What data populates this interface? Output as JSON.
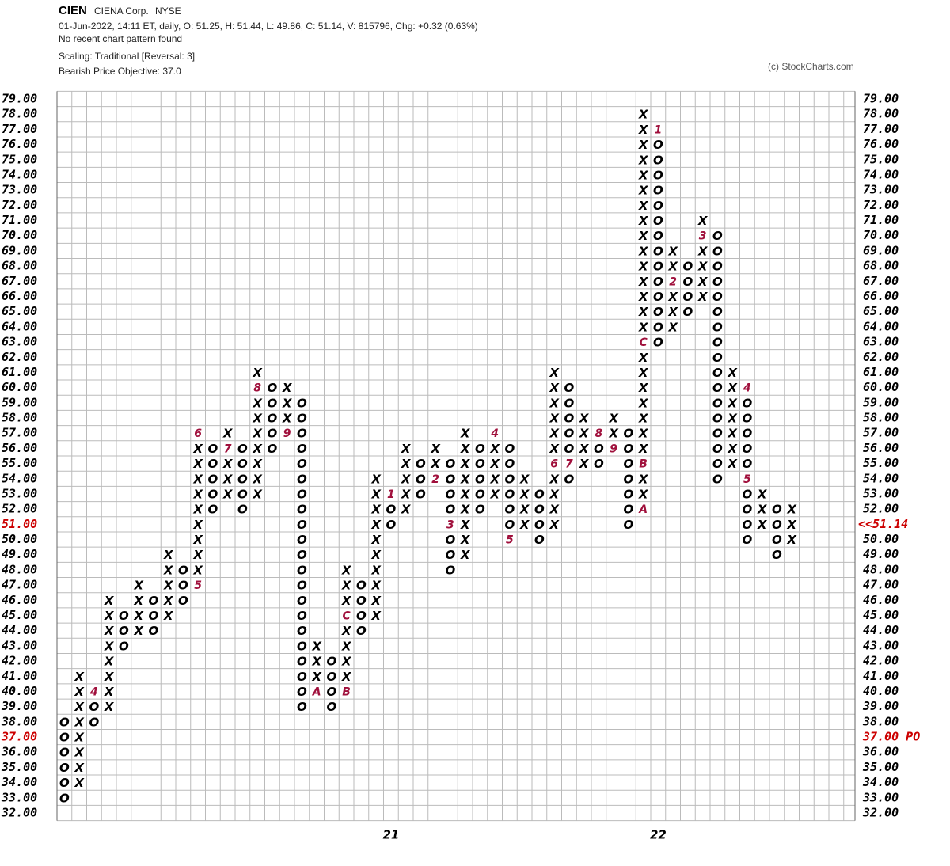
{
  "chart_data": {
    "type": "point-and-figure",
    "symbol": "CIEN",
    "name": "CIENA Corp.",
    "exchange": "NYSE",
    "quote": "01-Jun-2022, 14:11 ET, daily, O: 51.25, H: 51.44, L: 49.86, C: 51.14, V: 815796, Chg: +0.32 (0.63%)",
    "pattern": "No recent chart pattern found",
    "scaling": "Scaling: Traditional [Reversal: 3]",
    "objective_text": "Bearish Price Objective: 37.0",
    "credit": "(c) StockCharts.com",
    "box_size": 1,
    "highlight_color": "#cc0000",
    "ylim": [
      32,
      79
    ],
    "yticks": [
      {
        "value": 32,
        "label": "32.00"
      },
      {
        "value": 33,
        "label": "33.00"
      },
      {
        "value": 34,
        "label": "34.00"
      },
      {
        "value": 35,
        "label": "35.00"
      },
      {
        "value": 36,
        "label": "36.00"
      },
      {
        "value": 37,
        "label": "37.00"
      },
      {
        "value": 38,
        "label": "38.00"
      },
      {
        "value": 39,
        "label": "39.00"
      },
      {
        "value": 40,
        "label": "40.00"
      },
      {
        "value": 41,
        "label": "41.00"
      },
      {
        "value": 42,
        "label": "42.00"
      },
      {
        "value": 43,
        "label": "43.00"
      },
      {
        "value": 44,
        "label": "44.00"
      },
      {
        "value": 45,
        "label": "45.00"
      },
      {
        "value": 46,
        "label": "46.00"
      },
      {
        "value": 47,
        "label": "47.00"
      },
      {
        "value": 48,
        "label": "48.00"
      },
      {
        "value": 49,
        "label": "49.00"
      },
      {
        "value": 50,
        "label": "50.00"
      },
      {
        "value": 51,
        "label": "51.00"
      },
      {
        "value": 52,
        "label": "52.00"
      },
      {
        "value": 53,
        "label": "53.00"
      },
      {
        "value": 54,
        "label": "54.00"
      },
      {
        "value": 55,
        "label": "55.00"
      },
      {
        "value": 56,
        "label": "56.00"
      },
      {
        "value": 57,
        "label": "57.00"
      },
      {
        "value": 58,
        "label": "58.00"
      },
      {
        "value": 59,
        "label": "59.00"
      },
      {
        "value": 60,
        "label": "60.00"
      },
      {
        "value": 61,
        "label": "61.00"
      },
      {
        "value": 62,
        "label": "62.00"
      },
      {
        "value": 63,
        "label": "63.00"
      },
      {
        "value": 64,
        "label": "64.00"
      },
      {
        "value": 65,
        "label": "65.00"
      },
      {
        "value": 66,
        "label": "66.00"
      },
      {
        "value": 67,
        "label": "67.00"
      },
      {
        "value": 68,
        "label": "68.00"
      },
      {
        "value": 69,
        "label": "69.00"
      },
      {
        "value": 70,
        "label": "70.00"
      },
      {
        "value": 71,
        "label": "71.00"
      },
      {
        "value": 72,
        "label": "72.00"
      },
      {
        "value": 73,
        "label": "73.00"
      },
      {
        "value": 74,
        "label": "74.00"
      },
      {
        "value": 75,
        "label": "75.00"
      },
      {
        "value": 76,
        "label": "76.00"
      },
      {
        "value": 77,
        "label": "77.00"
      },
      {
        "value": 78,
        "label": "78.00"
      },
      {
        "value": 79,
        "label": "79.00"
      }
    ],
    "last_price": {
      "value": 51.14,
      "label": "<<51.14"
    },
    "price_objective": {
      "value": 37,
      "label": "37.00 PO"
    },
    "columns": [
      {
        "type": "O",
        "high": 38,
        "low": 33
      },
      {
        "type": "X",
        "high": 41,
        "low": 34
      },
      {
        "type": "O",
        "high": 40,
        "low": 38,
        "marks": [
          {
            "value": 40,
            "label": "4"
          }
        ]
      },
      {
        "type": "X",
        "high": 46,
        "low": 39
      },
      {
        "type": "O",
        "high": 45,
        "low": 43
      },
      {
        "type": "X",
        "high": 47,
        "low": 44
      },
      {
        "type": "O",
        "high": 46,
        "low": 44
      },
      {
        "type": "X",
        "high": 49,
        "low": 45
      },
      {
        "type": "O",
        "high": 48,
        "low": 46
      },
      {
        "type": "X",
        "high": 57,
        "low": 47,
        "marks": [
          {
            "value": 47,
            "label": "5"
          },
          {
            "value": 57,
            "label": "6"
          }
        ]
      },
      {
        "type": "O",
        "high": 56,
        "low": 52
      },
      {
        "type": "X",
        "high": 57,
        "low": 53,
        "marks": [
          {
            "value": 56,
            "label": "7"
          }
        ]
      },
      {
        "type": "O",
        "high": 56,
        "low": 52
      },
      {
        "type": "X",
        "high": 61,
        "low": 53,
        "marks": [
          {
            "value": 60,
            "label": "8"
          }
        ]
      },
      {
        "type": "O",
        "high": 60,
        "low": 56
      },
      {
        "type": "X",
        "high": 60,
        "low": 57,
        "marks": [
          {
            "value": 57,
            "label": "9"
          }
        ]
      },
      {
        "type": "O",
        "high": 59,
        "low": 39
      },
      {
        "type": "X",
        "high": 43,
        "low": 40,
        "marks": [
          {
            "value": 40,
            "label": "A"
          }
        ]
      },
      {
        "type": "O",
        "high": 42,
        "low": 39
      },
      {
        "type": "X",
        "high": 48,
        "low": 40,
        "marks": [
          {
            "value": 40,
            "label": "B"
          },
          {
            "value": 45,
            "label": "C"
          }
        ]
      },
      {
        "type": "O",
        "high": 47,
        "low": 44
      },
      {
        "type": "X",
        "high": 54,
        "low": 45
      },
      {
        "type": "O",
        "high": 53,
        "low": 51,
        "year": "21",
        "marks": [
          {
            "value": 53,
            "label": "1"
          }
        ]
      },
      {
        "type": "X",
        "high": 56,
        "low": 52
      },
      {
        "type": "O",
        "high": 55,
        "low": 53
      },
      {
        "type": "X",
        "high": 56,
        "low": 54,
        "marks": [
          {
            "value": 54,
            "label": "2"
          }
        ]
      },
      {
        "type": "O",
        "high": 55,
        "low": 48,
        "marks": [
          {
            "value": 51,
            "label": "3"
          }
        ]
      },
      {
        "type": "X",
        "high": 57,
        "low": 49
      },
      {
        "type": "O",
        "high": 56,
        "low": 52
      },
      {
        "type": "X",
        "high": 57,
        "low": 53,
        "marks": [
          {
            "value": 57,
            "label": "4"
          }
        ]
      },
      {
        "type": "O",
        "high": 56,
        "low": 50,
        "marks": [
          {
            "value": 50,
            "label": "5"
          }
        ]
      },
      {
        "type": "X",
        "high": 54,
        "low": 51
      },
      {
        "type": "O",
        "high": 53,
        "low": 50
      },
      {
        "type": "X",
        "high": 61,
        "low": 51,
        "marks": [
          {
            "value": 55,
            "label": "6"
          }
        ]
      },
      {
        "type": "O",
        "high": 60,
        "low": 54,
        "marks": [
          {
            "value": 55,
            "label": "7"
          }
        ]
      },
      {
        "type": "X",
        "high": 58,
        "low": 55
      },
      {
        "type": "O",
        "high": 57,
        "low": 55,
        "marks": [
          {
            "value": 57,
            "label": "8"
          }
        ]
      },
      {
        "type": "X",
        "high": 58,
        "low": 56,
        "marks": [
          {
            "value": 56,
            "label": "9"
          }
        ]
      },
      {
        "type": "O",
        "high": 57,
        "low": 51
      },
      {
        "type": "X",
        "high": 78,
        "low": 52,
        "marks": [
          {
            "value": 52,
            "label": "A"
          },
          {
            "value": 55,
            "label": "B"
          },
          {
            "value": 63,
            "label": "C"
          }
        ]
      },
      {
        "type": "O",
        "high": 77,
        "low": 63,
        "year": "22",
        "marks": [
          {
            "value": 77,
            "label": "1"
          }
        ]
      },
      {
        "type": "X",
        "high": 69,
        "low": 64,
        "marks": [
          {
            "value": 67,
            "label": "2"
          }
        ]
      },
      {
        "type": "O",
        "high": 68,
        "low": 65
      },
      {
        "type": "X",
        "high": 71,
        "low": 66,
        "marks": [
          {
            "value": 70,
            "label": "3"
          }
        ]
      },
      {
        "type": "O",
        "high": 70,
        "low": 54
      },
      {
        "type": "X",
        "high": 61,
        "low": 55
      },
      {
        "type": "O",
        "high": 60,
        "low": 50,
        "marks": [
          {
            "value": 60,
            "label": "4"
          },
          {
            "value": 54,
            "label": "5"
          }
        ]
      },
      {
        "type": "X",
        "high": 53,
        "low": 51
      },
      {
        "type": "O",
        "high": 52,
        "low": 49
      },
      {
        "type": "X",
        "high": 52,
        "low": 50
      }
    ]
  }
}
